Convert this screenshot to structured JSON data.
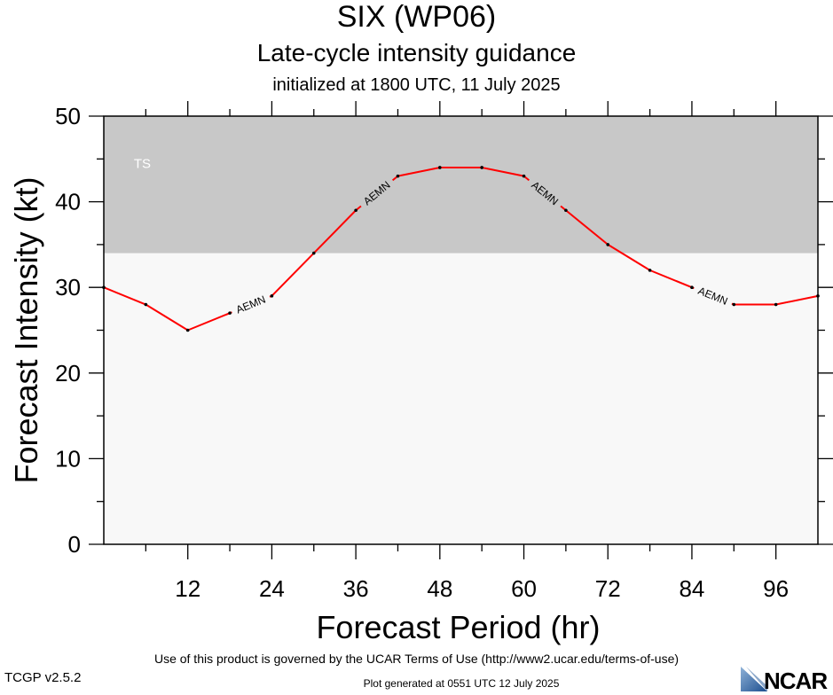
{
  "header": {
    "title": "SIX (WP06)",
    "subtitle": "Late-cycle intensity guidance",
    "init_line": "initialized at 1800 UTC, 11 July 2025"
  },
  "footer": {
    "terms": "Use of this product is governed by the UCAR Terms of Use (http://www2.ucar.edu/terms-of-use)",
    "version": "TCGP v2.5.2",
    "generated": "Plot generated at 0551 UTC   12 July 2025",
    "logo_text": "NCAR"
  },
  "chart_data": {
    "type": "line",
    "xlabel": "Forecast Period (hr)",
    "ylabel": "Forecast Intensity (kt)",
    "xlim": [
      0,
      102
    ],
    "ylim": [
      0,
      50
    ],
    "x_ticks": [
      12,
      24,
      36,
      48,
      60,
      72,
      84,
      96
    ],
    "y_ticks": [
      0,
      10,
      20,
      30,
      40,
      50
    ],
    "grid": false,
    "bands": [
      {
        "label": "TS",
        "y_from": 34,
        "y_to": 50,
        "color": "#c8c8c8"
      }
    ],
    "background_color": "#f8f8f8",
    "series": [
      {
        "name": "AEMN",
        "color": "#ff0000",
        "x": [
          0,
          6,
          12,
          18,
          24,
          30,
          36,
          42,
          48,
          54,
          60,
          66,
          72,
          78,
          84,
          90,
          96,
          102
        ],
        "values": [
          30,
          28,
          25,
          27,
          29,
          34,
          39,
          43,
          44,
          44,
          43,
          39,
          35,
          32,
          30,
          28,
          28,
          29
        ],
        "label_at_x": [
          21,
          39,
          63,
          87
        ]
      }
    ]
  }
}
